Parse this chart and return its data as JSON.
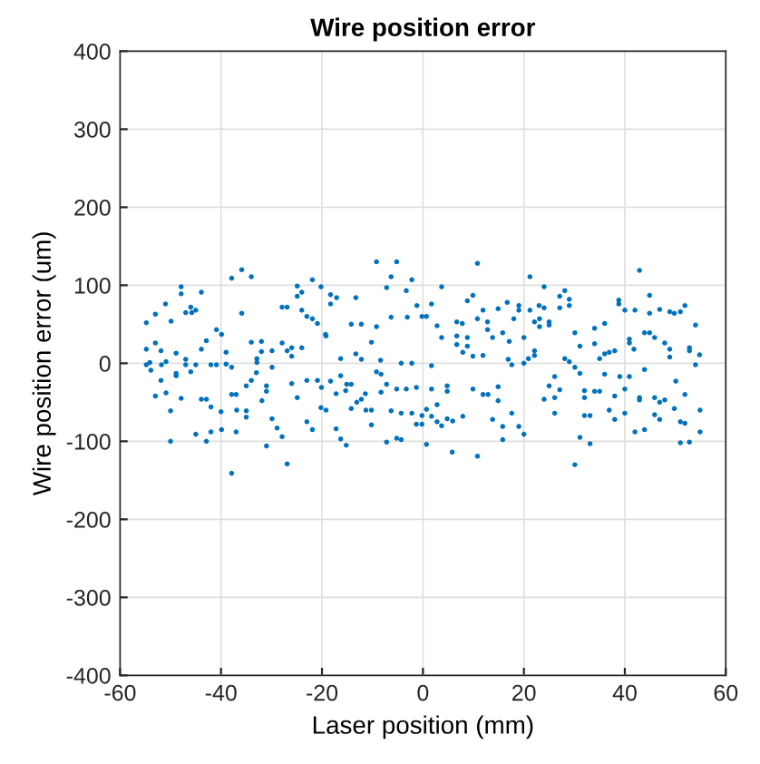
{
  "chart_data": {
    "type": "scatter",
    "title": "Wire position error",
    "xlabel": "Laser position (mm)",
    "ylabel": "Wire position error (um)",
    "xlim": [
      -60,
      60
    ],
    "ylim": [
      -400,
      400
    ],
    "xticks": [
      -60,
      -40,
      -20,
      0,
      20,
      40,
      60
    ],
    "yticks": [
      -400,
      -300,
      -200,
      -100,
      0,
      100,
      200,
      300,
      400
    ],
    "grid": true,
    "marker": "circle",
    "series": [
      {
        "color": "#0072bd",
        "x": [
          -54.8,
          -53.0,
          -51.0,
          -49.9,
          -47.9,
          -47.9,
          -43.9,
          -47.0,
          -46.0,
          -45.0,
          -45.8,
          -54.8,
          -53.0,
          -51.9,
          -54.8,
          -54.1,
          -53.9,
          -51.8,
          -50.9,
          -48.9,
          -47.0,
          -47.0,
          -45.0,
          -48.9,
          -48.9,
          -46.0,
          -51.9,
          -53.0,
          -50.9,
          -47.9,
          -50.0,
          -50.0,
          -43.9,
          -42.9,
          -42.0,
          -45.0,
          -42.9,
          -40.9,
          -39.9,
          -42.9,
          -43.9,
          -42.0,
          -40.9,
          -39.0,
          -39.0,
          -37.9,
          -40.0,
          -37.9,
          -37.0,
          -36.9,
          -39.9,
          -42.0,
          -37.0,
          -37.9,
          -37.9,
          -35.9,
          -34.0,
          -35.9,
          -35.0,
          -35.0,
          -35.0,
          -34.0,
          -34.0,
          -33.0,
          -32.9,
          -32.9,
          -32.0,
          -32.0,
          -31.9,
          -31.0,
          -31.0,
          -29.9,
          -29.9,
          -31.0,
          -29.9,
          -28.9,
          -27.9,
          -26.9,
          -27.9,
          -26.9,
          -26.0,
          -26.0,
          -24.0,
          -24.9,
          -26.0,
          -23.0,
          -21.9,
          -23.0,
          -20.9,
          -27.9,
          -26.9,
          -24.9,
          -24.0,
          -24.9,
          -24.0,
          -23.0,
          -21.9,
          -20.9,
          -21.9,
          -20.2,
          -18.3,
          -18.3,
          -17.1,
          -13.3,
          -19.3,
          -19.2,
          -16.3,
          -14.2,
          -12.2,
          -9.2,
          -10.2,
          -13.3,
          -12.2,
          -8.4,
          -9.2,
          -7.2,
          -6.3,
          -5.2,
          -3.3,
          -2.2,
          -6.3,
          -3.1,
          -1.2,
          -0.2,
          0.7,
          1.7,
          2.8,
          3.7,
          3.7,
          -4.3,
          -2.2,
          1.7,
          -18.3,
          -16.3,
          -15.1,
          -14.2,
          -20.1,
          -17.2,
          -15.3,
          -11.4,
          -9.2,
          -8.3,
          -7.2,
          -5.2,
          -3.3,
          -1.3,
          1.7,
          4.8,
          4.8,
          9.9,
          11.9,
          12.9,
          14.9,
          -20.2,
          -19.2,
          -17.2,
          -16.3,
          -15.2,
          -14.2,
          -13.1,
          -12.2,
          -11.3,
          -10.2,
          -10.2,
          -8.3,
          -6.3,
          -4.3,
          -2.2,
          -0.2,
          -1.3,
          -0.2,
          0.7,
          1.7,
          2.8,
          2.8,
          3.7,
          4.8,
          5.9,
          7.9,
          -7.2,
          -5.2,
          -4.3,
          0.7,
          5.8,
          10.8,
          6.7,
          7.8,
          6.7,
          6.7,
          8.8,
          8.8,
          7.9,
          9.9,
          11.9,
          8.8,
          9.9,
          10.8,
          11.9,
          12.8,
          12.8,
          13.8,
          14.9,
          16.7,
          15.8,
          16.9,
          17.6,
          13.8,
          15.8,
          15.8,
          10.8,
          14.9,
          17.6,
          17.1,
          18.0,
          19.0,
          19.0,
          21.2,
          21.2,
          23.0,
          24.0,
          24.0,
          27.1,
          28.1,
          29.0,
          29.0,
          27.1,
          20.0,
          22.1,
          23.1,
          25.0,
          25.0,
          23.1,
          22.1,
          22.1,
          20.9,
          20.0,
          30.1,
          34.0,
          36.0,
          38.8,
          38.8,
          40.0,
          42.0,
          42.9,
          44.9,
          44.9,
          46.9,
          48.9,
          49.8,
          51.0,
          51.9,
          54.0,
          31.1,
          34.0,
          36.0,
          35.0,
          36.9,
          38.0,
          40.9,
          40.9,
          41.8,
          43.9,
          44.9,
          45.9,
          47.9,
          48.9,
          48.9,
          52.8,
          52.8,
          54.8,
          54.0,
          28.1,
          29.0,
          30.1,
          31.1,
          26.1,
          27.1,
          25.0,
          24.0,
          26.1,
          32.0,
          32.0,
          34.0,
          35.0,
          36.0,
          36.9,
          38.0,
          39.0,
          40.9,
          40.0,
          40.0,
          42.9,
          42.9,
          43.9,
          45.9,
          46.9,
          47.9,
          50.1,
          51.9,
          54.9,
          19.0,
          20.0,
          26.1,
          32.0,
          33.1,
          38.0,
          45.9,
          46.9,
          49.8,
          51.0,
          51.9,
          42.0,
          43.9,
          54.9,
          31.1,
          33.1,
          30.1,
          51.0,
          52.8
        ],
        "values": [
          52,
          63,
          76,
          54,
          98,
          89,
          91,
          65,
          72,
          68,
          65,
          18,
          26,
          16,
          -2,
          1,
          -9,
          -2,
          2,
          13,
          5,
          -2,
          -2,
          -13,
          -16,
          -11,
          -22,
          -42,
          -38,
          -45,
          -61,
          -100,
          -46,
          -46,
          -56,
          -91,
          -100,
          43,
          37,
          29,
          18,
          -2,
          -2,
          14,
          -1,
          -5,
          -62,
          -40,
          -40,
          -60,
          -85,
          -88,
          -88,
          -141,
          109,
          120,
          111,
          64,
          -61,
          -69,
          -29,
          27,
          -22,
          -12,
          6,
          1,
          28,
          15,
          -48,
          -36,
          -29,
          -5,
          16,
          -106,
          -71,
          -83,
          -94,
          -129,
          26,
          16,
          9,
          20,
          20,
          -44,
          -26,
          -75,
          -85,
          -22,
          -22,
          72,
          72,
          99,
          91,
          86,
          68,
          60,
          57,
          51,
          107,
          98,
          88,
          76,
          84,
          84,
          37,
          35,
          6,
          50,
          50,
          47,
          27,
          12,
          5,
          4,
          130,
          97,
          111,
          130,
          93,
          107,
          59,
          59,
          74,
          60,
          60,
          76,
          48,
          98,
          33,
          0,
          0,
          -3,
          -23,
          -16,
          -27,
          -27,
          -31,
          -39,
          -35,
          -39,
          -11,
          -14,
          -27,
          -33,
          -33,
          -31,
          -33,
          -29,
          -36,
          -33,
          -40,
          -40,
          -30,
          -57,
          -60,
          -84,
          -97,
          -105,
          -58,
          -50,
          -46,
          -60,
          -60,
          -79,
          -37,
          -61,
          -64,
          -64,
          -67,
          -78,
          -78,
          -59,
          -68,
          -53,
          -75,
          -80,
          -71,
          -74,
          -68,
          -101,
          -96,
          -98,
          -104,
          -114,
          -119,
          53,
          51,
          35,
          24,
          33,
          22,
          14,
          9,
          10,
          80,
          87,
          57,
          68,
          53,
          43,
          33,
          70,
          78,
          39,
          5,
          -2,
          -72,
          -81,
          -98,
          128,
          -48,
          -64,
          28,
          57,
          74,
          68,
          111,
          68,
          74,
          98,
          71,
          86,
          93,
          82,
          74,
          71,
          33,
          53,
          47,
          53,
          49,
          57,
          16,
          10,
          6,
          0,
          39,
          45,
          51,
          81,
          76,
          68,
          68,
          119,
          87,
          64,
          69,
          66,
          64,
          66,
          74,
          49,
          22,
          25,
          12,
          6,
          14,
          16,
          31,
          26,
          18,
          39,
          39,
          33,
          26,
          18,
          8,
          20,
          16,
          11,
          -2,
          6,
          2,
          -5,
          -13,
          -17,
          -34,
          -29,
          -46,
          -44,
          -35,
          -44,
          -36,
          -36,
          -14,
          -60,
          -42,
          -17,
          -17,
          -33,
          -64,
          -44,
          -47,
          -8,
          -44,
          -50,
          -47,
          -23,
          -40,
          -60,
          -81,
          -91,
          -64,
          -67,
          -67,
          -72,
          -66,
          -72,
          -58,
          -75,
          -77,
          -88,
          -85,
          -88,
          -95,
          -103,
          -130,
          -102,
          -101
        ]
      }
    ]
  }
}
